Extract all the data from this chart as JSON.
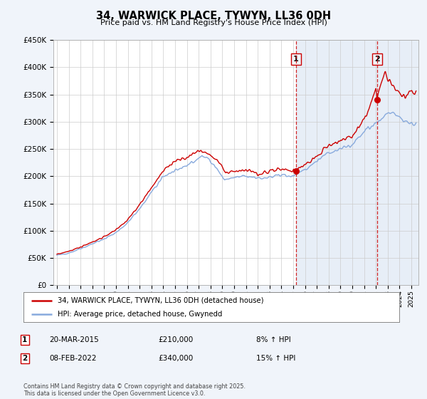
{
  "title": "34, WARWICK PLACE, TYWYN, LL36 0DH",
  "subtitle": "Price paid vs. HM Land Registry's House Price Index (HPI)",
  "ylim": [
    0,
    450000
  ],
  "xlim_start": 1994.7,
  "xlim_end": 2025.6,
  "red_line_color": "#cc0000",
  "blue_line_color": "#88aadd",
  "shade_color": "#dde8f5",
  "vline1_x": 2015.22,
  "vline2_x": 2022.1,
  "marker1_x": 2015.22,
  "marker1_y": 210000,
  "marker2_x": 2022.1,
  "marker2_y": 340000,
  "legend_label1": "34, WARWICK PLACE, TYWYN, LL36 0DH (detached house)",
  "legend_label2": "HPI: Average price, detached house, Gwynedd",
  "annotation1_num": "1",
  "annotation1_date": "20-MAR-2015",
  "annotation1_price": "£210,000",
  "annotation1_hpi": "8% ↑ HPI",
  "annotation2_num": "2",
  "annotation2_date": "08-FEB-2022",
  "annotation2_price": "£340,000",
  "annotation2_hpi": "15% ↑ HPI",
  "footer": "Contains HM Land Registry data © Crown copyright and database right 2025.\nThis data is licensed under the Open Government Licence v3.0.",
  "background_color": "#f0f4fa",
  "plot_bg_color": "#ffffff"
}
